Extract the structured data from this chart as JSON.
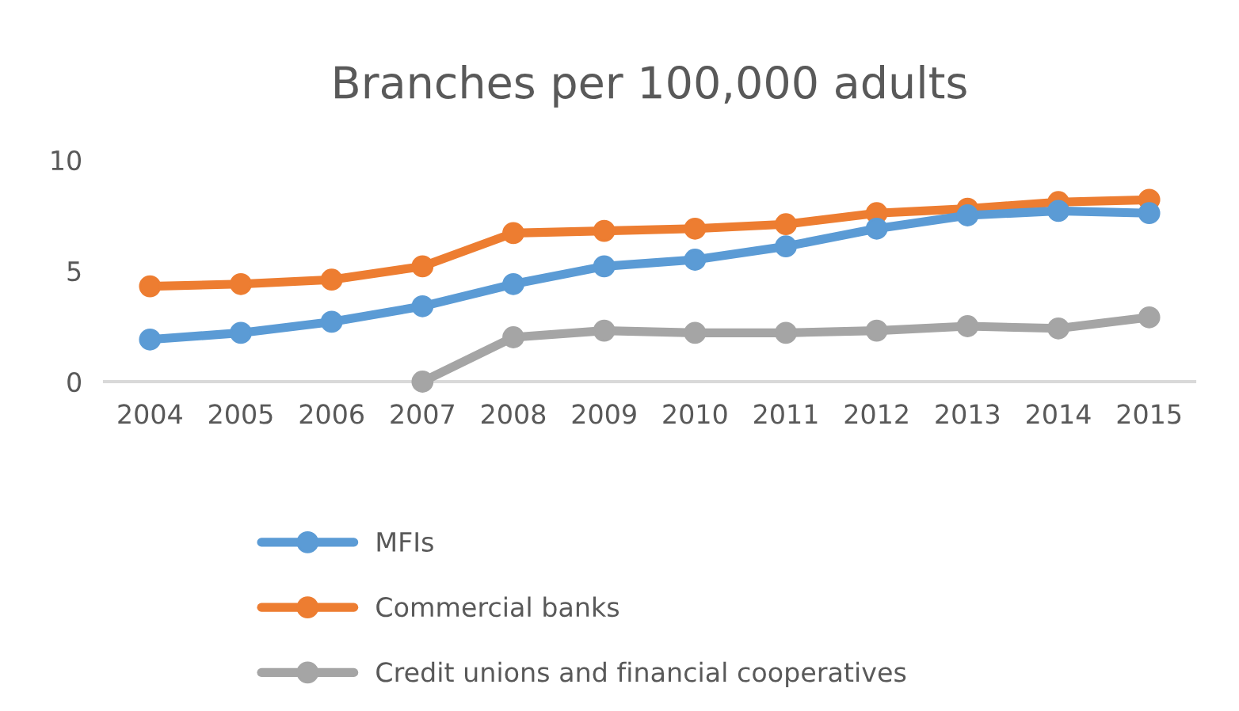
{
  "chart_data": {
    "type": "line",
    "title": "Branches per 100,000 adults",
    "categories": [
      "2004",
      "2005",
      "2006",
      "2007",
      "2008",
      "2009",
      "2010",
      "2011",
      "2012",
      "2013",
      "2014",
      "2015"
    ],
    "series": [
      {
        "name": "MFIs",
        "color": "#5b9bd5",
        "values": [
          1.9,
          2.2,
          2.7,
          3.4,
          4.4,
          5.2,
          5.5,
          6.1,
          6.9,
          7.5,
          7.7,
          7.6
        ]
      },
      {
        "name": "Commercial banks",
        "color": "#ed7d31",
        "values": [
          4.3,
          4.4,
          4.6,
          5.2,
          6.7,
          6.8,
          6.9,
          7.1,
          7.6,
          7.8,
          8.1,
          8.2
        ]
      },
      {
        "name": "Credit unions and financial cooperatives",
        "color": "#a5a5a5",
        "values": [
          null,
          null,
          null,
          0,
          2.0,
          2.3,
          2.2,
          2.2,
          2.3,
          2.5,
          2.4,
          2.9
        ]
      }
    ],
    "ylim": [
      0,
      10
    ],
    "yticks": [
      0,
      5,
      10
    ],
    "grid": false,
    "legend": "bottom",
    "marker": "circle",
    "line_style": "solid"
  }
}
